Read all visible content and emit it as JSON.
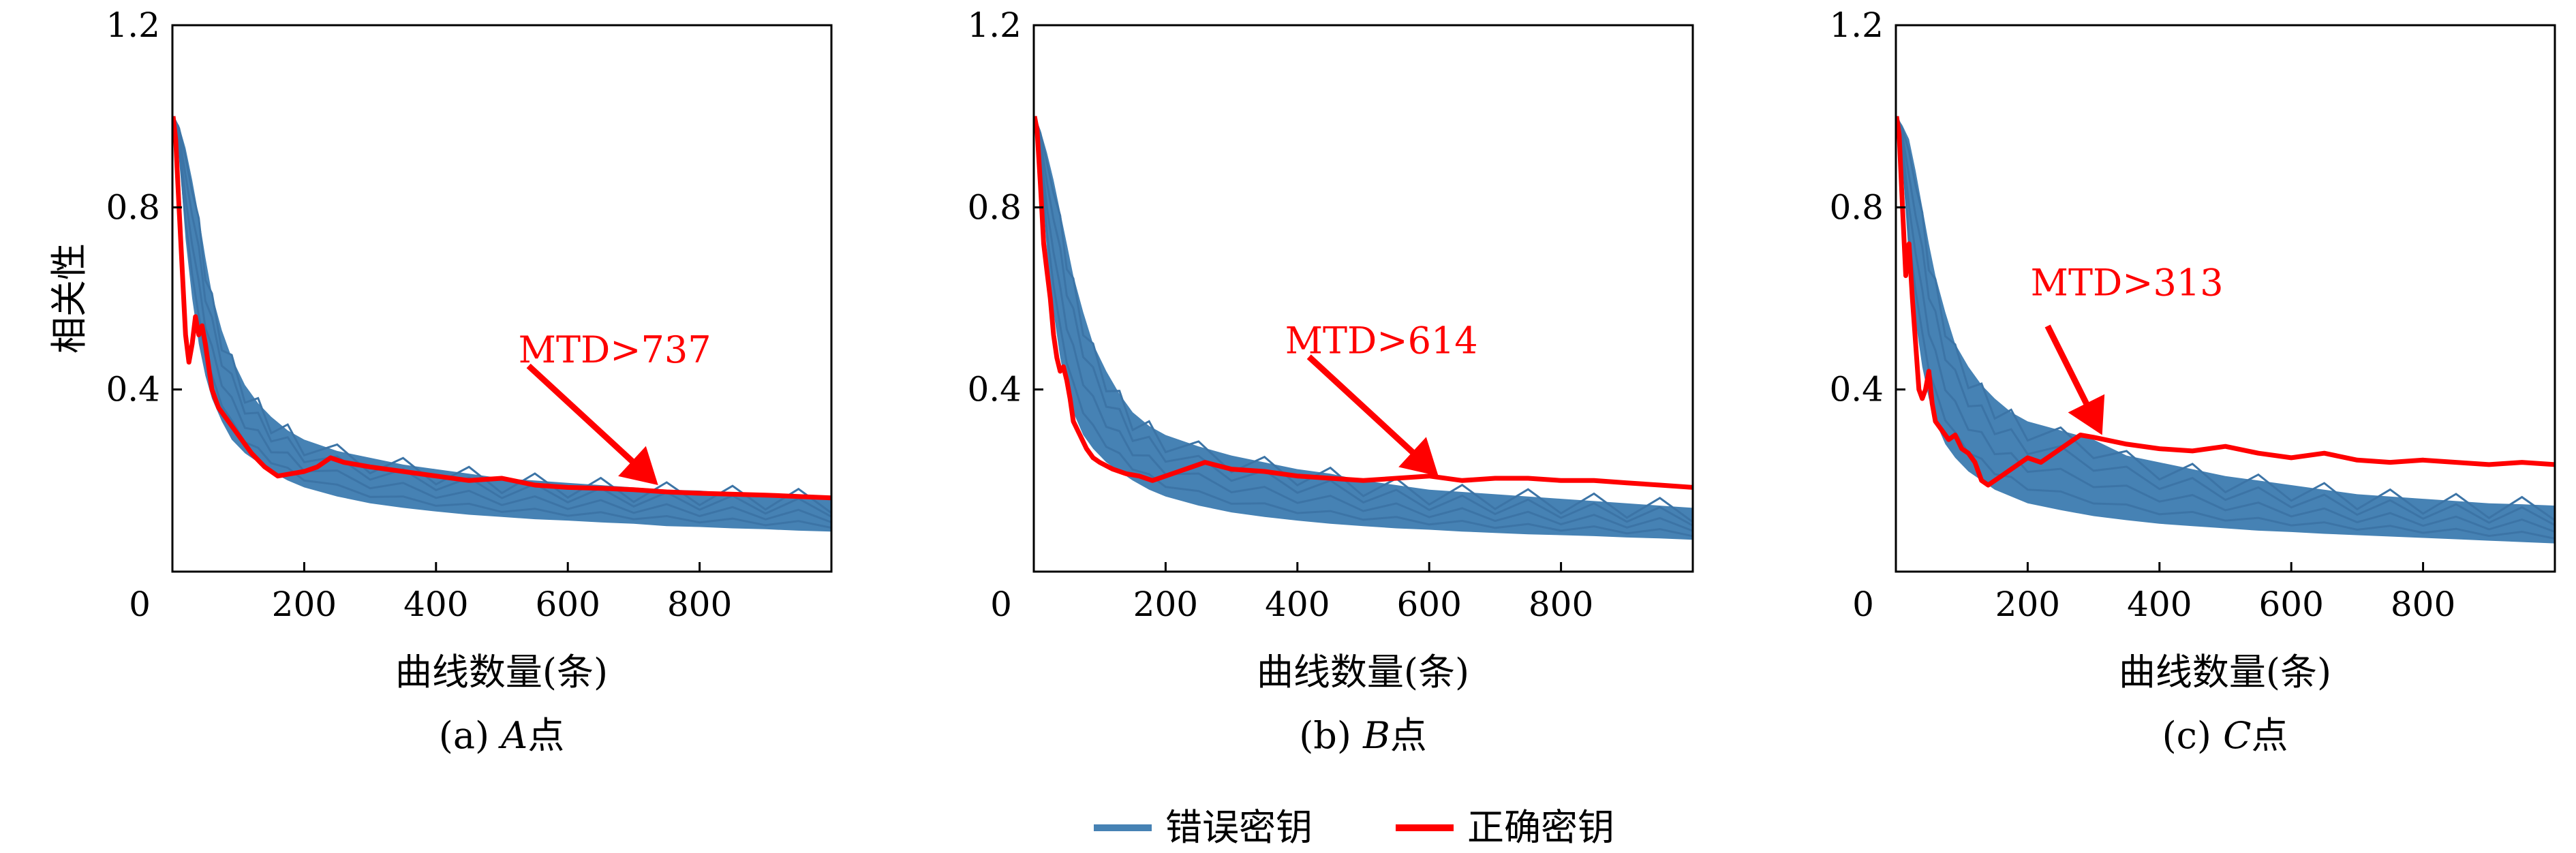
{
  "figure": {
    "legend": {
      "placement": "bottom-center",
      "entries": [
        {
          "label": "错误密钥",
          "color": "#4682b4"
        },
        {
          "label": "正确密钥",
          "color": "#ff0000"
        }
      ]
    }
  },
  "chart_data": [
    {
      "type": "line",
      "caption": "(a) A点",
      "caption_prefix": "(a) ",
      "caption_italic": "A",
      "caption_suffix": "点",
      "xlabel": "曲线数量(条)",
      "ylabel": "相关性",
      "xlim": [
        0,
        1000
      ],
      "ylim": [
        0,
        1.2
      ],
      "xticks": [
        0,
        200,
        400,
        600,
        800
      ],
      "yticks": [
        0.4,
        0.8,
        1.2
      ],
      "grid": false,
      "annotation": {
        "text": "MTD>737",
        "x": 737,
        "y": 0.19,
        "color": "#ff0000"
      },
      "wrong_band": {
        "name": "错误密钥",
        "color": "#4682b4",
        "x": [
          1,
          10,
          20,
          30,
          40,
          50,
          60,
          75,
          90,
          110,
          130,
          150,
          175,
          200,
          250,
          300,
          350,
          400,
          450,
          500,
          550,
          600,
          650,
          700,
          750,
          800,
          850,
          900,
          950,
          1000
        ],
        "upper": [
          1.0,
          0.98,
          0.93,
          0.86,
          0.78,
          0.69,
          0.61,
          0.53,
          0.47,
          0.41,
          0.37,
          0.34,
          0.31,
          0.29,
          0.265,
          0.25,
          0.235,
          0.225,
          0.215,
          0.205,
          0.2,
          0.195,
          0.19,
          0.185,
          0.18,
          0.178,
          0.172,
          0.168,
          0.165,
          0.16
        ],
        "lower": [
          1.0,
          0.92,
          0.73,
          0.6,
          0.5,
          0.43,
          0.38,
          0.33,
          0.29,
          0.26,
          0.24,
          0.22,
          0.2,
          0.185,
          0.165,
          0.15,
          0.14,
          0.132,
          0.125,
          0.12,
          0.115,
          0.112,
          0.108,
          0.105,
          0.1,
          0.098,
          0.095,
          0.093,
          0.09,
          0.088
        ]
      },
      "correct_key": {
        "name": "正确密钥",
        "color": "#ff0000",
        "x": [
          1,
          5,
          10,
          15,
          20,
          25,
          30,
          35,
          40,
          45,
          50,
          55,
          60,
          70,
          80,
          90,
          100,
          120,
          140,
          160,
          180,
          200,
          220,
          240,
          260,
          300,
          350,
          400,
          450,
          500,
          550,
          600,
          650,
          700,
          750,
          800,
          850,
          900,
          950,
          1000
        ],
        "y": [
          1.0,
          0.95,
          0.8,
          0.66,
          0.52,
          0.46,
          0.5,
          0.56,
          0.52,
          0.54,
          0.5,
          0.45,
          0.4,
          0.36,
          0.34,
          0.32,
          0.3,
          0.26,
          0.23,
          0.21,
          0.215,
          0.22,
          0.23,
          0.25,
          0.24,
          0.23,
          0.22,
          0.21,
          0.2,
          0.205,
          0.19,
          0.185,
          0.183,
          0.18,
          0.175,
          0.172,
          0.17,
          0.168,
          0.165,
          0.162
        ]
      }
    },
    {
      "type": "line",
      "caption": "(b) B点",
      "caption_prefix": "(b) ",
      "caption_italic": "B",
      "caption_suffix": "点",
      "xlabel": "曲线数量(条)",
      "ylabel": "",
      "xlim": [
        0,
        1000
      ],
      "ylim": [
        0,
        1.2
      ],
      "xticks": [
        0,
        200,
        400,
        600,
        800
      ],
      "yticks": [
        0.4,
        0.8,
        1.2
      ],
      "grid": false,
      "annotation": {
        "text": "MTD>614",
        "x": 614,
        "y": 0.21,
        "color": "#ff0000"
      },
      "wrong_band": {
        "name": "错误密钥",
        "color": "#4682b4",
        "x": [
          1,
          10,
          20,
          30,
          40,
          50,
          60,
          75,
          90,
          110,
          130,
          150,
          175,
          200,
          250,
          300,
          350,
          400,
          450,
          500,
          550,
          600,
          650,
          700,
          750,
          800,
          850,
          900,
          950,
          1000
        ],
        "upper": [
          1.0,
          0.97,
          0.92,
          0.86,
          0.79,
          0.72,
          0.65,
          0.57,
          0.5,
          0.44,
          0.39,
          0.35,
          0.32,
          0.3,
          0.275,
          0.255,
          0.24,
          0.225,
          0.215,
          0.2,
          0.19,
          0.18,
          0.175,
          0.17,
          0.165,
          0.16,
          0.155,
          0.15,
          0.145,
          0.14
        ],
        "lower": [
          1.0,
          0.9,
          0.7,
          0.57,
          0.47,
          0.4,
          0.35,
          0.3,
          0.27,
          0.24,
          0.22,
          0.2,
          0.18,
          0.165,
          0.145,
          0.13,
          0.12,
          0.112,
          0.105,
          0.1,
          0.095,
          0.092,
          0.088,
          0.085,
          0.082,
          0.08,
          0.078,
          0.075,
          0.073,
          0.07
        ]
      },
      "correct_key": {
        "name": "正确密钥",
        "color": "#ff0000",
        "x": [
          1,
          5,
          10,
          15,
          20,
          25,
          30,
          35,
          40,
          45,
          50,
          55,
          60,
          70,
          80,
          90,
          100,
          120,
          140,
          160,
          180,
          200,
          220,
          240,
          260,
          300,
          350,
          400,
          450,
          500,
          550,
          600,
          650,
          700,
          750,
          800,
          850,
          900,
          950,
          1000
        ],
        "y": [
          1.0,
          0.97,
          0.85,
          0.72,
          0.66,
          0.6,
          0.52,
          0.47,
          0.44,
          0.45,
          0.42,
          0.38,
          0.33,
          0.3,
          0.27,
          0.25,
          0.24,
          0.225,
          0.215,
          0.21,
          0.2,
          0.21,
          0.22,
          0.23,
          0.24,
          0.225,
          0.22,
          0.21,
          0.205,
          0.2,
          0.205,
          0.21,
          0.2,
          0.205,
          0.205,
          0.2,
          0.2,
          0.195,
          0.19,
          0.185
        ]
      }
    },
    {
      "type": "line",
      "caption": "(c) C点",
      "caption_prefix": "(c) ",
      "caption_italic": "C",
      "caption_suffix": "点",
      "xlabel": "曲线数量(条)",
      "ylabel": "",
      "xlim": [
        0,
        1000
      ],
      "ylim": [
        0,
        1.2
      ],
      "xticks": [
        0,
        200,
        400,
        600,
        800
      ],
      "yticks": [
        0.4,
        0.8,
        1.2
      ],
      "grid": false,
      "annotation": {
        "text": "MTD>313",
        "x": 313,
        "y": 0.3,
        "color": "#ff0000"
      },
      "wrong_band": {
        "name": "错误密钥",
        "color": "#4682b4",
        "x": [
          1,
          10,
          20,
          30,
          40,
          50,
          60,
          75,
          90,
          110,
          130,
          150,
          175,
          200,
          250,
          300,
          350,
          400,
          450,
          500,
          550,
          600,
          650,
          700,
          750,
          800,
          850,
          900,
          950,
          1000
        ],
        "upper": [
          1.0,
          0.98,
          0.95,
          0.88,
          0.8,
          0.72,
          0.65,
          0.57,
          0.5,
          0.45,
          0.41,
          0.38,
          0.35,
          0.33,
          0.31,
          0.29,
          0.255,
          0.24,
          0.225,
          0.21,
          0.2,
          0.19,
          0.18,
          0.17,
          0.165,
          0.16,
          0.155,
          0.15,
          0.148,
          0.145
        ],
        "lower": [
          1.0,
          0.9,
          0.68,
          0.55,
          0.45,
          0.38,
          0.33,
          0.28,
          0.25,
          0.22,
          0.2,
          0.18,
          0.165,
          0.15,
          0.135,
          0.122,
          0.113,
          0.105,
          0.1,
          0.095,
          0.09,
          0.087,
          0.083,
          0.08,
          0.077,
          0.074,
          0.071,
          0.068,
          0.065,
          0.062
        ]
      },
      "correct_key": {
        "name": "正确密钥",
        "color": "#ff0000",
        "x": [
          1,
          5,
          10,
          15,
          20,
          25,
          30,
          35,
          40,
          45,
          50,
          55,
          60,
          70,
          80,
          90,
          100,
          110,
          120,
          130,
          140,
          160,
          180,
          200,
          220,
          240,
          260,
          280,
          300,
          350,
          400,
          450,
          500,
          550,
          600,
          650,
          700,
          750,
          800,
          850,
          900,
          950,
          1000
        ],
        "y": [
          1.0,
          0.96,
          0.8,
          0.65,
          0.72,
          0.6,
          0.5,
          0.4,
          0.38,
          0.4,
          0.44,
          0.37,
          0.33,
          0.31,
          0.29,
          0.3,
          0.27,
          0.26,
          0.24,
          0.2,
          0.19,
          0.21,
          0.23,
          0.25,
          0.24,
          0.26,
          0.28,
          0.3,
          0.295,
          0.28,
          0.27,
          0.265,
          0.275,
          0.26,
          0.25,
          0.26,
          0.245,
          0.24,
          0.245,
          0.24,
          0.235,
          0.24,
          0.235
        ]
      }
    }
  ]
}
